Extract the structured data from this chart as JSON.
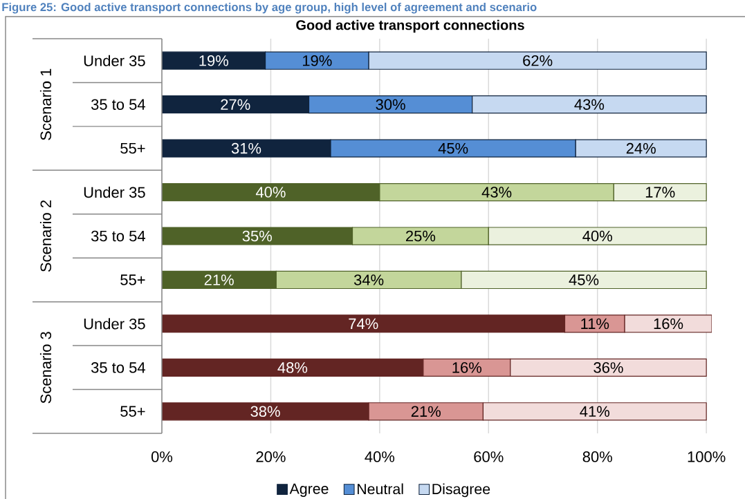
{
  "chart_data": {
    "type": "bar",
    "orientation": "horizontal",
    "stacked": true,
    "title": "Figure 25: Good active transport connections by age group, high level of agreement and scenario",
    "subtitle": "Good active transport connections",
    "categories": [
      "Under 35",
      "35 to 54",
      "55+",
      "Under 35",
      "35 to 54",
      "55+",
      "Under 35",
      "35 to 54",
      "55+"
    ],
    "series": [
      {
        "name": "Agree",
        "color": "#10243e",
        "colors": [
          "#10243e",
          "#10243e",
          "#10243e",
          "#4f6228",
          "#4f6228",
          "#4f6228",
          "#632523",
          "#632523",
          "#632523"
        ],
        "values": [
          19,
          27,
          31,
          40,
          35,
          21,
          74,
          48,
          38
        ],
        "value_labels": [
          "19%",
          "27%",
          "31%",
          "40%",
          "35%",
          "21%",
          "74%",
          "48%",
          "38%"
        ]
      },
      {
        "name": "Neutral",
        "color": "#558ed5",
        "colors": [
          "#558ed5",
          "#558ed5",
          "#558ed5",
          "#c3d69b",
          "#c3d69b",
          "#c3d69b",
          "#d99694",
          "#d99694",
          "#d99694"
        ],
        "values": [
          19,
          30,
          45,
          43,
          25,
          34,
          11,
          16,
          21
        ],
        "value_labels": [
          "19%",
          "30%",
          "45%",
          "43%",
          "25%",
          "34%",
          "11%",
          "16%",
          "21%"
        ]
      },
      {
        "name": "Disagree",
        "color": "#c6d9f1",
        "colors": [
          "#c6d9f1",
          "#c6d9f1",
          "#c6d9f1",
          "#ebf1de",
          "#ebf1de",
          "#ebf1de",
          "#f2dcdb",
          "#f2dcdb",
          "#f2dcdb"
        ],
        "values": [
          62,
          43,
          24,
          17,
          40,
          45,
          16,
          36,
          41
        ],
        "value_labels": [
          "62%",
          "43%",
          "24%",
          "17%",
          "40%",
          "45%",
          "16%",
          "36%",
          "41%"
        ]
      }
    ],
    "annotations": [
      "Scenario 1",
      "Scenario 2",
      "Scenario 3"
    ],
    "xlim": [
      0,
      101
    ],
    "xticks": [
      {
        "value": 0,
        "label": "0%"
      },
      {
        "value": 20,
        "label": "20%"
      },
      {
        "value": 40,
        "label": "40%"
      },
      {
        "value": 60,
        "label": "60%"
      },
      {
        "value": 80,
        "label": "80%"
      },
      {
        "value": 100,
        "label": "100%"
      }
    ],
    "grid": "x",
    "legend": "bottom"
  }
}
